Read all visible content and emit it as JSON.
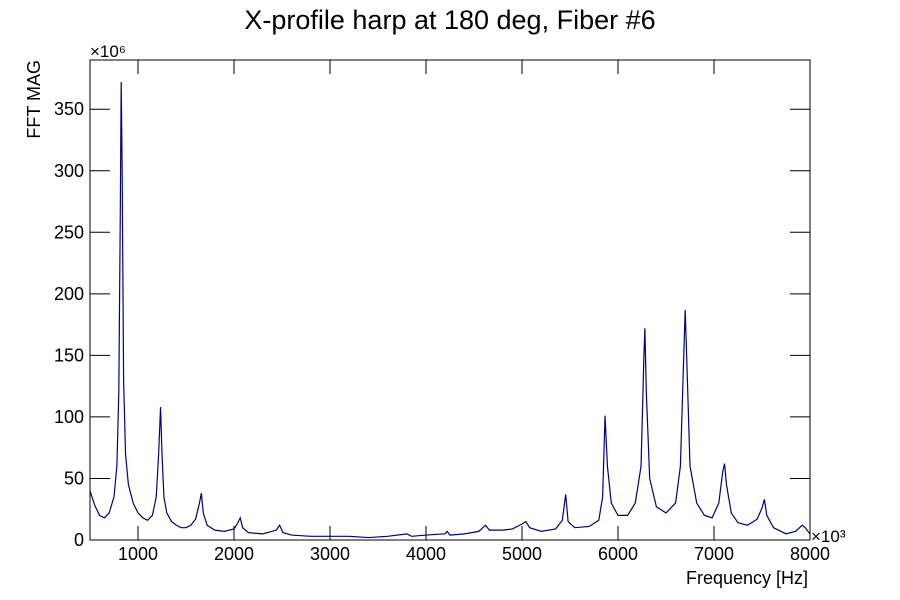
{
  "chart_data": {
    "type": "line",
    "title": "X-profile harp at 180 deg, Fiber #6",
    "xlabel": "Frequency [Hz]",
    "ylabel": "FFT MAG",
    "x_multiplier": "×10³",
    "y_multiplier": "×10⁶",
    "xlim": [
      500,
      8000
    ],
    "ylim": [
      0,
      390
    ],
    "xticks": [
      1000,
      2000,
      3000,
      4000,
      5000,
      6000,
      7000,
      8000
    ],
    "yticks": [
      0,
      50,
      100,
      150,
      200,
      250,
      300,
      350
    ],
    "series": [
      {
        "color": "#000080",
        "x": [
          500,
          550,
          600,
          650,
          700,
          750,
          780,
          800,
          815,
          825,
          835,
          850,
          870,
          900,
          950,
          1000,
          1050,
          1100,
          1150,
          1190,
          1215,
          1235,
          1250,
          1270,
          1300,
          1350,
          1400,
          1450,
          1500,
          1550,
          1600,
          1640,
          1660,
          1680,
          1720,
          1800,
          1900,
          2000,
          2040,
          2065,
          2090,
          2150,
          2300,
          2440,
          2475,
          2510,
          2600,
          2800,
          3000,
          3200,
          3400,
          3600,
          3800,
          3850,
          4000,
          4200,
          4220,
          4250,
          4400,
          4550,
          4620,
          4660,
          4800,
          4900,
          5000,
          5040,
          5080,
          5200,
          5350,
          5420,
          5455,
          5480,
          5550,
          5700,
          5800,
          5840,
          5865,
          5890,
          5930,
          6000,
          6100,
          6180,
          6240,
          6270,
          6280,
          6295,
          6330,
          6400,
          6500,
          6600,
          6650,
          6685,
          6700,
          6715,
          6750,
          6820,
          6900,
          6980,
          7050,
          7090,
          7110,
          7130,
          7180,
          7250,
          7350,
          7450,
          7500,
          7525,
          7550,
          7620,
          7750,
          7850,
          7920,
          7950,
          8000
        ],
        "values": [
          40,
          28,
          20,
          18,
          22,
          35,
          60,
          120,
          260,
          372,
          300,
          130,
          70,
          45,
          30,
          22,
          18,
          16,
          20,
          35,
          70,
          108,
          70,
          35,
          22,
          15,
          12,
          10,
          10,
          12,
          17,
          30,
          38,
          22,
          12,
          8,
          7,
          9,
          14,
          18,
          10,
          6,
          5,
          8,
          12,
          6,
          4,
          3,
          3,
          3,
          2,
          3,
          5,
          3,
          4,
          5,
          7,
          4,
          5,
          7,
          12,
          8,
          8,
          9,
          13,
          15,
          10,
          7,
          9,
          16,
          37,
          15,
          10,
          11,
          16,
          35,
          101,
          60,
          30,
          20,
          20,
          30,
          60,
          150,
          172,
          120,
          50,
          27,
          22,
          30,
          60,
          150,
          187,
          150,
          60,
          30,
          20,
          18,
          30,
          55,
          62,
          45,
          22,
          14,
          12,
          17,
          26,
          33,
          20,
          10,
          5,
          7,
          12,
          10,
          5
        ]
      }
    ]
  }
}
